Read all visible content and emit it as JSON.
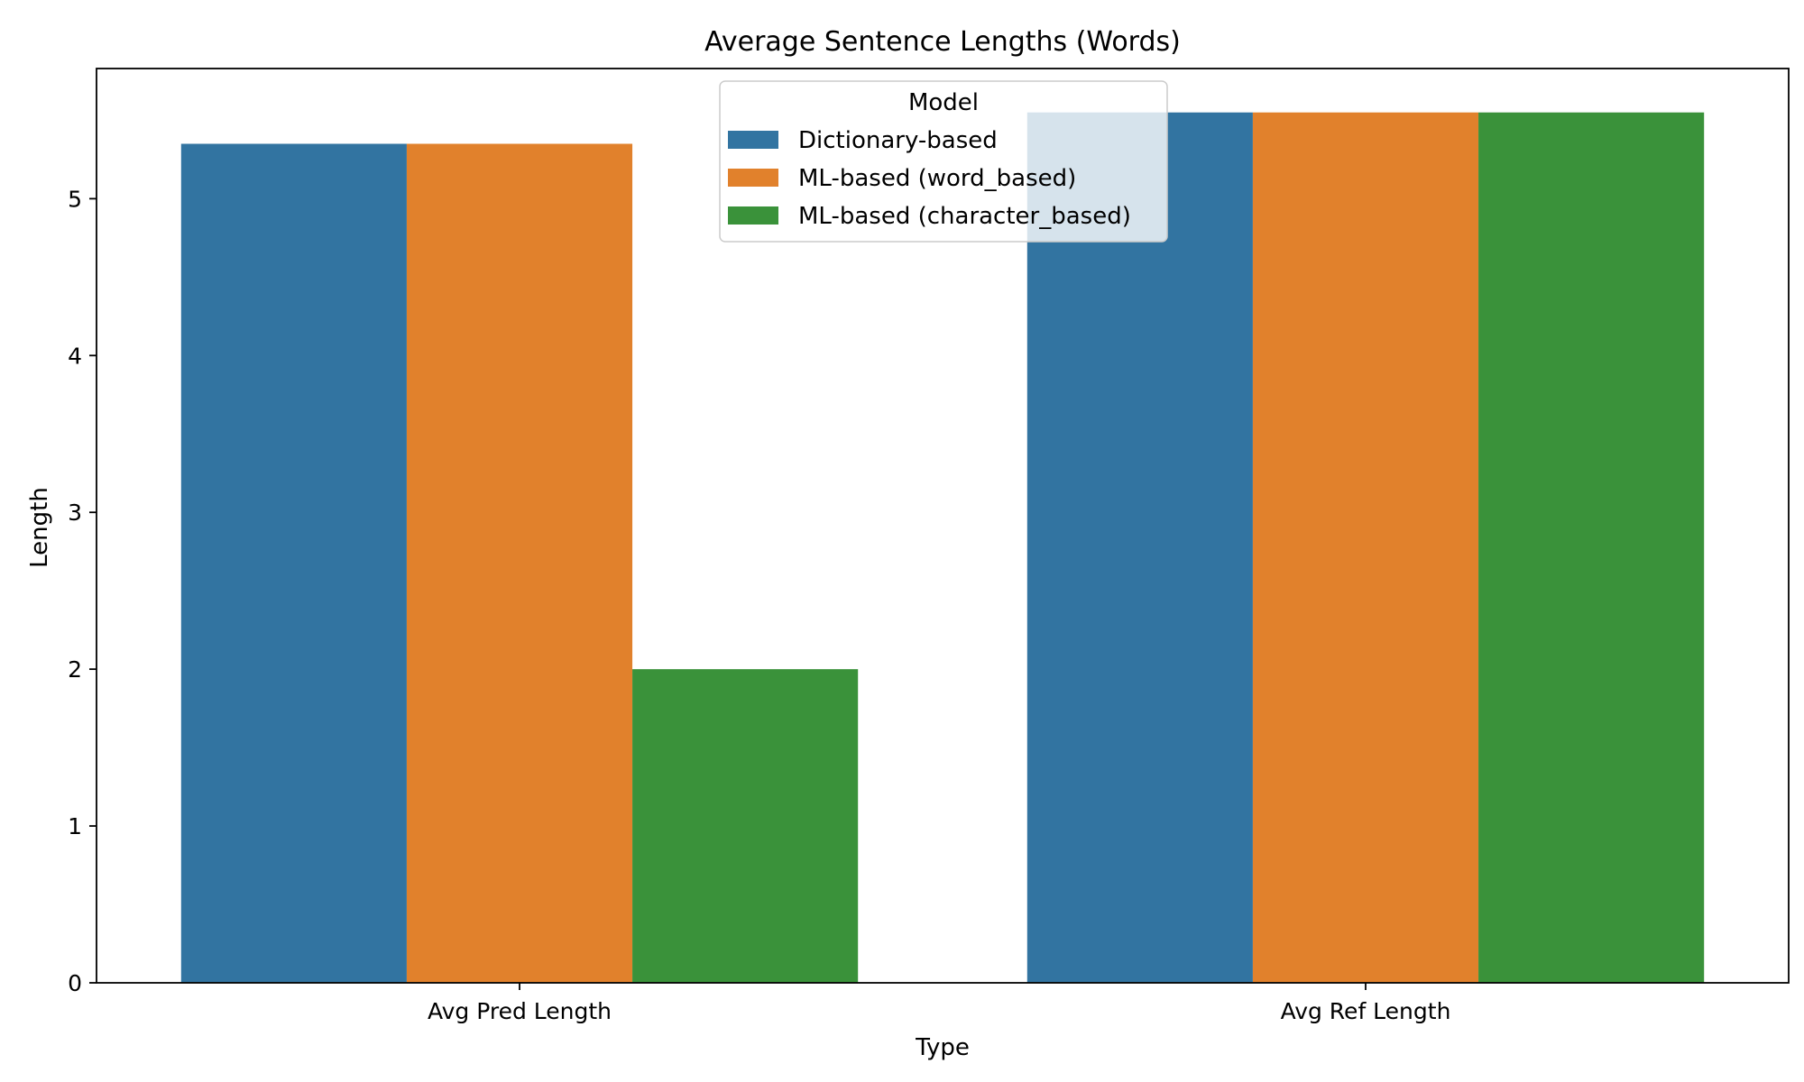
{
  "chart_data": {
    "type": "bar",
    "title": "Average Sentence Lengths (Words)",
    "xlabel": "Type",
    "ylabel": "Length",
    "categories": [
      "Avg Pred Length",
      "Avg Ref Length"
    ],
    "series": [
      {
        "name": "Dictionary-based",
        "values": [
          5.35,
          5.55
        ],
        "color": "#3274a1"
      },
      {
        "name": "ML-based (word_based)",
        "values": [
          5.35,
          5.55
        ],
        "color": "#e1812c"
      },
      {
        "name": "ML-based (character_based)",
        "values": [
          2.0,
          5.55
        ],
        "color": "#3a923a"
      }
    ],
    "ylim": [
      0,
      5.83
    ],
    "yticks": [
      0,
      1,
      2,
      3,
      4,
      5
    ],
    "grid": false,
    "legend": {
      "title": "Model",
      "placement": "upper-center"
    }
  }
}
